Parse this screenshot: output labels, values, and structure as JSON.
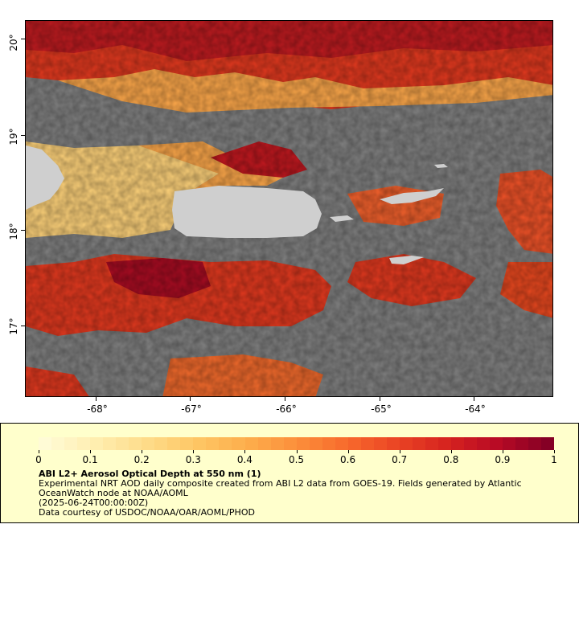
{
  "map": {
    "lat_ticks": [
      "20°",
      "19°",
      "18°",
      "17°"
    ],
    "lon_ticks": [
      "-68°",
      "-67°",
      "-66°",
      "-65°",
      "-64°"
    ],
    "ocean_color": "#808080",
    "land_color": "#cfcfcf",
    "no_data_color": "#808080"
  },
  "legend": {
    "colorbar_labels": [
      "0",
      "0.1",
      "0.2",
      "0.3",
      "0.4",
      "0.5",
      "0.6",
      "0.7",
      "0.8",
      "0.9",
      "1"
    ],
    "colormap": [
      "#fffbd6",
      "#ffeeb0",
      "#fedc8a",
      "#fec765",
      "#fdae4c",
      "#fc8f3b",
      "#f86a2c",
      "#ea4424",
      "#d6231f",
      "#b80a25",
      "#850025"
    ],
    "title": "ABI L2+ Aerosol Optical Depth at 550 nm (1)",
    "description": "Experimental NRT AOD daily composite created from ABI L2 data from GOES-19. Fields generated by Atlantic OceanWatch node at NOAA/AOML",
    "date": "(2025-06-24T00:00:00Z)",
    "credit": "Data courtesy of USDOC/NOAA/OAR/AOML/PHOD"
  }
}
